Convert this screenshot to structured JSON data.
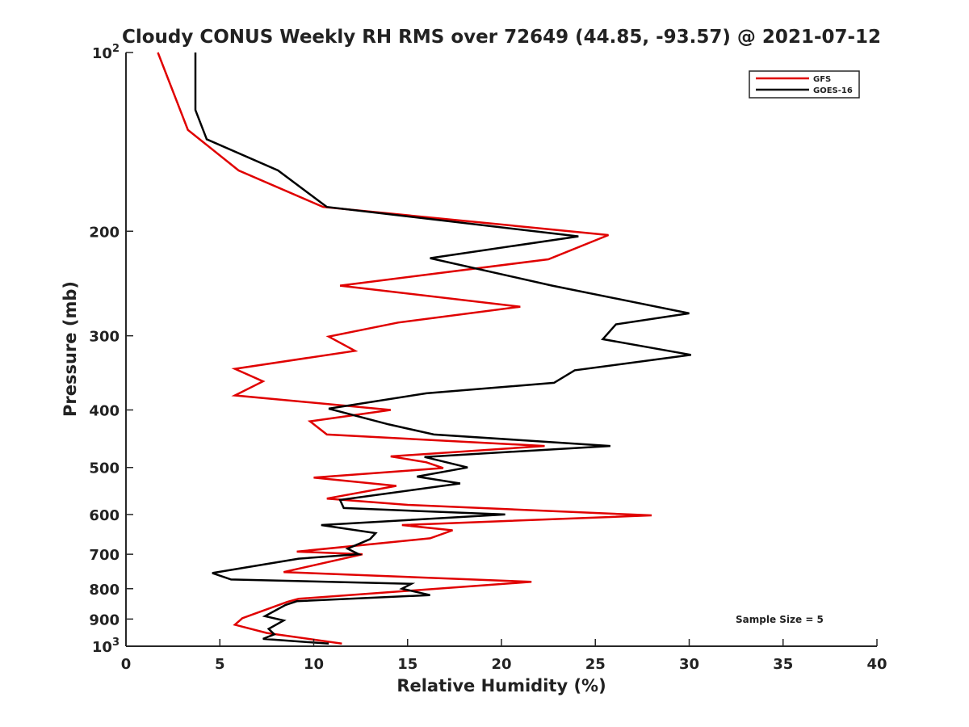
{
  "chart_data": {
    "type": "line",
    "title": "Cloudy CONUS Weekly RH RMS over 72649 (44.85, -93.57) @ 2021-07-12",
    "xlabel": "Relative Humidity (%)",
    "ylabel": "Pressure (mb)",
    "xlim": [
      0,
      40
    ],
    "ylim": [
      1000,
      100
    ],
    "y_scale": "log",
    "y_reversed": true,
    "grid": false,
    "legend_position": "top-right",
    "x_ticks": [
      "0",
      "5",
      "10",
      "15",
      "20",
      "25",
      "30",
      "35",
      "40"
    ],
    "y_ticks": [
      {
        "value": 100,
        "label": "10",
        "sup": "2"
      },
      {
        "value": 200,
        "label": "200",
        "sup": ""
      },
      {
        "value": 300,
        "label": "300",
        "sup": ""
      },
      {
        "value": 400,
        "label": "400",
        "sup": ""
      },
      {
        "value": 500,
        "label": "500",
        "sup": ""
      },
      {
        "value": 600,
        "label": "600",
        "sup": ""
      },
      {
        "value": 700,
        "label": "700",
        "sup": ""
      },
      {
        "value": 800,
        "label": "800",
        "sup": ""
      },
      {
        "value": 900,
        "label": "900",
        "sup": ""
      },
      {
        "value": 1000,
        "label": "10",
        "sup": "3"
      }
    ],
    "annotation": "Sample Size = 5",
    "series": [
      {
        "name": "GFS",
        "color": "#e00000",
        "points": [
          [
            1.7,
            100
          ],
          [
            3.3,
            135
          ],
          [
            6.0,
            158
          ],
          [
            10.5,
            182
          ],
          [
            25.7,
            203
          ],
          [
            22.5,
            223
          ],
          [
            11.4,
            247
          ],
          [
            21.0,
            268
          ],
          [
            14.5,
            285
          ],
          [
            10.8,
            301
          ],
          [
            12.2,
            318
          ],
          [
            5.8,
            341
          ],
          [
            7.3,
            358
          ],
          [
            5.8,
            378
          ],
          [
            14.1,
            400
          ],
          [
            9.8,
            418
          ],
          [
            10.7,
            440
          ],
          [
            22.3,
            460
          ],
          [
            14.1,
            479
          ],
          [
            16.0,
            490
          ],
          [
            16.9,
            501
          ],
          [
            10.0,
            520
          ],
          [
            14.4,
            537
          ],
          [
            10.7,
            564
          ],
          [
            15.0,
            578
          ],
          [
            28.0,
            602
          ],
          [
            14.7,
            625
          ],
          [
            17.4,
            638
          ],
          [
            16.2,
            658
          ],
          [
            9.1,
            693
          ],
          [
            12.6,
            700
          ],
          [
            8.4,
            750
          ],
          [
            21.6,
            779
          ],
          [
            9.2,
            832
          ],
          [
            8.6,
            842
          ],
          [
            6.2,
            897
          ],
          [
            5.8,
            920
          ],
          [
            7.5,
            950
          ],
          [
            11.5,
            990
          ]
        ]
      },
      {
        "name": "GOES-16",
        "color": "#000000",
        "points": [
          [
            3.7,
            100
          ],
          [
            3.7,
            125
          ],
          [
            4.3,
            140
          ],
          [
            8.1,
            158
          ],
          [
            10.7,
            182
          ],
          [
            24.1,
            204
          ],
          [
            16.2,
            222
          ],
          [
            22.7,
            247
          ],
          [
            30.0,
            275
          ],
          [
            26.1,
            287
          ],
          [
            25.4,
            304
          ],
          [
            30.1,
            323
          ],
          [
            23.9,
            343
          ],
          [
            22.8,
            360
          ],
          [
            16.0,
            375
          ],
          [
            10.8,
            398
          ],
          [
            14.0,
            423
          ],
          [
            16.4,
            440
          ],
          [
            25.8,
            460
          ],
          [
            15.9,
            480
          ],
          [
            18.2,
            500
          ],
          [
            15.5,
            518
          ],
          [
            17.8,
            532
          ],
          [
            11.4,
            567
          ],
          [
            11.6,
            585
          ],
          [
            20.2,
            600
          ],
          [
            10.4,
            625
          ],
          [
            13.3,
            645
          ],
          [
            13.0,
            660
          ],
          [
            11.8,
            685
          ],
          [
            12.4,
            700
          ],
          [
            9.2,
            712
          ],
          [
            4.6,
            753
          ],
          [
            5.6,
            772
          ],
          [
            15.2,
            785
          ],
          [
            14.7,
            800
          ],
          [
            16.2,
            820
          ],
          [
            9.1,
            840
          ],
          [
            8.5,
            852
          ],
          [
            7.4,
            890
          ],
          [
            8.4,
            905
          ],
          [
            7.6,
            935
          ],
          [
            7.9,
            955
          ],
          [
            7.3,
            972
          ],
          [
            10.8,
            990
          ]
        ]
      }
    ]
  }
}
